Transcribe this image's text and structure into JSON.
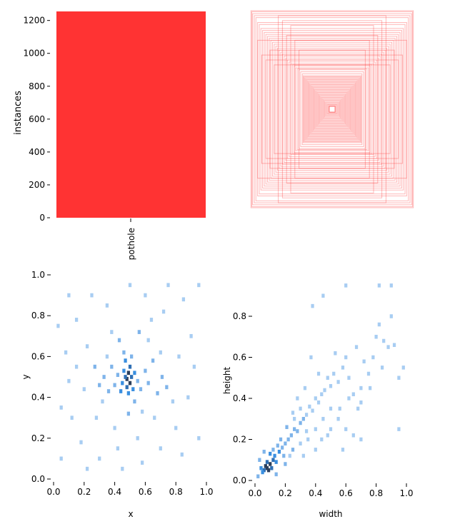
{
  "chart_data": [
    {
      "panel": "top-left",
      "type": "bar",
      "categories": [
        "pothole"
      ],
      "values": [
        1255
      ],
      "xlabel": "",
      "ylabel": "instances",
      "ylim": [
        0,
        1255
      ],
      "yticks": [
        0,
        200,
        400,
        600,
        800,
        1000,
        1200
      ],
      "bar_color": "#ff3333",
      "grid": false
    },
    {
      "panel": "top-right",
      "type": "bounding-box-overlay",
      "description_visible": false,
      "box_color": "#ff3333",
      "box_sizes": [
        [
          0.98,
          1.0
        ],
        [
          0.97,
          0.99
        ],
        [
          0.96,
          0.97
        ],
        [
          0.94,
          0.95
        ],
        [
          0.92,
          0.93
        ],
        [
          0.9,
          0.88
        ],
        [
          0.88,
          0.86
        ],
        [
          0.86,
          0.82
        ],
        [
          0.84,
          0.8
        ],
        [
          0.82,
          0.78
        ],
        [
          0.8,
          0.76
        ],
        [
          0.78,
          0.74
        ],
        [
          0.76,
          0.72
        ],
        [
          0.74,
          0.7
        ],
        [
          0.72,
          0.68
        ],
        [
          0.7,
          0.66
        ],
        [
          0.68,
          0.64
        ],
        [
          0.66,
          0.62
        ],
        [
          0.64,
          0.6
        ],
        [
          0.62,
          0.58
        ],
        [
          0.6,
          0.56
        ],
        [
          0.58,
          0.54
        ],
        [
          0.56,
          0.52
        ],
        [
          0.54,
          0.5
        ],
        [
          0.52,
          0.48
        ],
        [
          0.5,
          0.46
        ],
        [
          0.48,
          0.45
        ],
        [
          0.46,
          0.44
        ],
        [
          0.44,
          0.42
        ],
        [
          0.42,
          0.41
        ],
        [
          0.4,
          0.4
        ],
        [
          0.38,
          0.38
        ],
        [
          0.36,
          0.36
        ],
        [
          0.35,
          0.34
        ],
        [
          0.34,
          0.33
        ],
        [
          0.33,
          0.32
        ],
        [
          0.32,
          0.31
        ],
        [
          0.31,
          0.3
        ],
        [
          0.3,
          0.29
        ],
        [
          0.29,
          0.28
        ],
        [
          0.28,
          0.27
        ],
        [
          0.27,
          0.26
        ],
        [
          0.26,
          0.25
        ],
        [
          0.25,
          0.24
        ],
        [
          0.24,
          0.23
        ],
        [
          0.23,
          0.22
        ],
        [
          0.22,
          0.21
        ],
        [
          0.21,
          0.2
        ],
        [
          0.2,
          0.19
        ],
        [
          0.19,
          0.18
        ],
        [
          0.18,
          0.17
        ],
        [
          0.17,
          0.16
        ],
        [
          0.16,
          0.15
        ],
        [
          0.15,
          0.14
        ],
        [
          0.14,
          0.13
        ],
        [
          0.13,
          0.12
        ],
        [
          0.12,
          0.11
        ],
        [
          0.11,
          0.1
        ],
        [
          0.1,
          0.09
        ],
        [
          0.09,
          0.08
        ],
        [
          0.08,
          0.07
        ],
        [
          0.07,
          0.06
        ],
        [
          0.06,
          0.05
        ],
        [
          0.05,
          0.045
        ],
        [
          0.04,
          0.035
        ],
        [
          0.03,
          0.03
        ],
        [
          0.02,
          0.02
        ],
        [
          0.6,
          0.9
        ],
        [
          0.5,
          0.85
        ],
        [
          0.75,
          0.6
        ],
        [
          0.85,
          0.55
        ],
        [
          0.65,
          0.95
        ],
        [
          0.45,
          0.7
        ],
        [
          0.7,
          0.45
        ],
        [
          0.9,
          0.7
        ],
        [
          0.55,
          0.75
        ],
        [
          0.8,
          0.5
        ],
        [
          0.4,
          0.6
        ]
      ]
    },
    {
      "panel": "bottom-left",
      "type": "heatmap",
      "xlabel": "x",
      "ylabel": "y",
      "xlim": [
        0,
        1
      ],
      "ylim": [
        0,
        1
      ],
      "xticks": [
        "0.0",
        "0.2",
        "0.4",
        "0.6",
        "0.8",
        "1.0"
      ],
      "yticks": [
        "0.0",
        "0.2",
        "0.4",
        "0.6",
        "0.8",
        "1.0"
      ],
      "color_light": "#a8cdf2",
      "color_mid": "#3a8fe0",
      "color_dark": "#2b3f5c",
      "center": [
        0.49,
        0.49
      ],
      "cells": [
        [
          0.48,
          0.49,
          5
        ],
        [
          0.5,
          0.47,
          5
        ],
        [
          0.49,
          0.52,
          5
        ],
        [
          0.47,
          0.5,
          4
        ],
        [
          0.51,
          0.5,
          4
        ],
        [
          0.48,
          0.45,
          4
        ],
        [
          0.5,
          0.55,
          4
        ],
        [
          0.46,
          0.53,
          3
        ],
        [
          0.52,
          0.44,
          3
        ],
        [
          0.45,
          0.47,
          3
        ],
        [
          0.53,
          0.52,
          3
        ],
        [
          0.49,
          0.42,
          3
        ],
        [
          0.47,
          0.58,
          3
        ],
        [
          0.44,
          0.43,
          3
        ],
        [
          0.55,
          0.48,
          2
        ],
        [
          0.42,
          0.51,
          2
        ],
        [
          0.51,
          0.6,
          2
        ],
        [
          0.4,
          0.46,
          2
        ],
        [
          0.57,
          0.44,
          2
        ],
        [
          0.46,
          0.62,
          2
        ],
        [
          0.6,
          0.53,
          2
        ],
        [
          0.38,
          0.55,
          2
        ],
        [
          0.62,
          0.47,
          2
        ],
        [
          0.36,
          0.43,
          2
        ],
        [
          0.65,
          0.58,
          2
        ],
        [
          0.53,
          0.38,
          2
        ],
        [
          0.33,
          0.5,
          2
        ],
        [
          0.68,
          0.42,
          2
        ],
        [
          0.43,
          0.68,
          2
        ],
        [
          0.71,
          0.5,
          2
        ],
        [
          0.3,
          0.46,
          2
        ],
        [
          0.49,
          0.32,
          2
        ],
        [
          0.56,
          0.72,
          2
        ],
        [
          0.27,
          0.55,
          2
        ],
        [
          0.74,
          0.45,
          2
        ],
        [
          0.2,
          0.44,
          1
        ],
        [
          0.12,
          0.3,
          1
        ],
        [
          0.08,
          0.62,
          1
        ],
        [
          0.15,
          0.78,
          1
        ],
        [
          0.25,
          0.9,
          1
        ],
        [
          0.35,
          0.85,
          1
        ],
        [
          0.6,
          0.9,
          1
        ],
        [
          0.72,
          0.82,
          1
        ],
        [
          0.85,
          0.88,
          1
        ],
        [
          0.9,
          0.7,
          1
        ],
        [
          0.82,
          0.6,
          1
        ],
        [
          0.88,
          0.4,
          1
        ],
        [
          0.8,
          0.25,
          1
        ],
        [
          0.7,
          0.15,
          1
        ],
        [
          0.58,
          0.08,
          1
        ],
        [
          0.45,
          0.05,
          1
        ],
        [
          0.3,
          0.1,
          1
        ],
        [
          0.18,
          0.18,
          1
        ],
        [
          0.05,
          0.35,
          1
        ],
        [
          0.1,
          0.48,
          1
        ],
        [
          0.22,
          0.65,
          1
        ],
        [
          0.38,
          0.72,
          1
        ],
        [
          0.62,
          0.68,
          1
        ],
        [
          0.78,
          0.38,
          1
        ],
        [
          0.66,
          0.3,
          1
        ],
        [
          0.4,
          0.25,
          1
        ],
        [
          0.28,
          0.3,
          1
        ],
        [
          0.15,
          0.55,
          1
        ],
        [
          0.92,
          0.55,
          1
        ],
        [
          0.95,
          0.2,
          1
        ],
        [
          0.05,
          0.1,
          1
        ],
        [
          0.1,
          0.9,
          1
        ],
        [
          0.5,
          0.95,
          1
        ],
        [
          0.75,
          0.95,
          1
        ],
        [
          0.95,
          0.95,
          1
        ],
        [
          0.03,
          0.75,
          1
        ],
        [
          0.35,
          0.6,
          1
        ],
        [
          0.64,
          0.78,
          1
        ],
        [
          0.84,
          0.12,
          1
        ],
        [
          0.22,
          0.05,
          1
        ],
        [
          0.55,
          0.2,
          1
        ],
        [
          0.42,
          0.15,
          1
        ],
        [
          0.7,
          0.62,
          1
        ],
        [
          0.32,
          0.38,
          1
        ],
        [
          0.58,
          0.33,
          1
        ]
      ]
    },
    {
      "panel": "bottom-right",
      "type": "heatmap",
      "xlabel": "width",
      "ylabel": "height",
      "xlim": [
        0,
        1
      ],
      "ylim": [
        0,
        0.96
      ],
      "xticks": [
        "0.0",
        "0.2",
        "0.4",
        "0.6",
        "0.8",
        "1.0"
      ],
      "yticks": [
        "0.0",
        "0.2",
        "0.4",
        "0.6",
        "0.8"
      ],
      "color_light": "#a8cdf2",
      "color_mid": "#3a8fe0",
      "color_dark": "#2b3f5c",
      "cells": [
        [
          0.08,
          0.06,
          5
        ],
        [
          0.09,
          0.05,
          5
        ],
        [
          0.07,
          0.07,
          5
        ],
        [
          0.1,
          0.08,
          5
        ],
        [
          0.06,
          0.05,
          4
        ],
        [
          0.11,
          0.06,
          4
        ],
        [
          0.08,
          0.09,
          4
        ],
        [
          0.12,
          0.1,
          4
        ],
        [
          0.05,
          0.04,
          3
        ],
        [
          0.13,
          0.12,
          3
        ],
        [
          0.14,
          0.09,
          3
        ],
        [
          0.1,
          0.13,
          3
        ],
        [
          0.16,
          0.14,
          3
        ],
        [
          0.04,
          0.06,
          3
        ],
        [
          0.18,
          0.16,
          2
        ],
        [
          0.2,
          0.18,
          2
        ],
        [
          0.15,
          0.17,
          2
        ],
        [
          0.22,
          0.2,
          2
        ],
        [
          0.24,
          0.22,
          2
        ],
        [
          0.19,
          0.12,
          2
        ],
        [
          0.26,
          0.25,
          2
        ],
        [
          0.28,
          0.24,
          2
        ],
        [
          0.17,
          0.2,
          2
        ],
        [
          0.3,
          0.28,
          2
        ],
        [
          0.21,
          0.26,
          2
        ],
        [
          0.32,
          0.3,
          2
        ],
        [
          0.25,
          0.15,
          2
        ],
        [
          0.12,
          0.15,
          2
        ],
        [
          0.34,
          0.32,
          1
        ],
        [
          0.36,
          0.36,
          1
        ],
        [
          0.38,
          0.34,
          1
        ],
        [
          0.4,
          0.4,
          1
        ],
        [
          0.42,
          0.38,
          1
        ],
        [
          0.44,
          0.42,
          1
        ],
        [
          0.46,
          0.44,
          1
        ],
        [
          0.48,
          0.5,
          1
        ],
        [
          0.5,
          0.46,
          1
        ],
        [
          0.52,
          0.52,
          1
        ],
        [
          0.55,
          0.48,
          1
        ],
        [
          0.58,
          0.55,
          1
        ],
        [
          0.6,
          0.6,
          1
        ],
        [
          0.62,
          0.5,
          1
        ],
        [
          0.65,
          0.42,
          1
        ],
        [
          0.68,
          0.35,
          1
        ],
        [
          0.7,
          0.45,
          1
        ],
        [
          0.72,
          0.58,
          1
        ],
        [
          0.75,
          0.52,
          1
        ],
        [
          0.78,
          0.6,
          1
        ],
        [
          0.8,
          0.7,
          1
        ],
        [
          0.82,
          0.76,
          1
        ],
        [
          0.85,
          0.68,
          1
        ],
        [
          0.88,
          0.65,
          1
        ],
        [
          0.9,
          0.8,
          1
        ],
        [
          0.92,
          0.66,
          1
        ],
        [
          0.95,
          0.5,
          1
        ],
        [
          0.98,
          0.55,
          1
        ],
        [
          0.5,
          0.35,
          1
        ],
        [
          0.45,
          0.3,
          1
        ],
        [
          0.4,
          0.25,
          1
        ],
        [
          0.35,
          0.2,
          1
        ],
        [
          0.55,
          0.3,
          1
        ],
        [
          0.6,
          0.25,
          1
        ],
        [
          0.65,
          0.22,
          1
        ],
        [
          0.3,
          0.35,
          1
        ],
        [
          0.25,
          0.33,
          1
        ],
        [
          0.28,
          0.4,
          1
        ],
        [
          0.33,
          0.45,
          1
        ],
        [
          0.38,
          0.85,
          1
        ],
        [
          0.45,
          0.9,
          1
        ],
        [
          0.6,
          0.95,
          1
        ],
        [
          0.82,
          0.95,
          1
        ],
        [
          0.9,
          0.95,
          1
        ],
        [
          0.95,
          0.25,
          1
        ],
        [
          0.7,
          0.2,
          1
        ],
        [
          0.58,
          0.15,
          1
        ],
        [
          0.48,
          0.22,
          1
        ],
        [
          0.42,
          0.52,
          1
        ],
        [
          0.37,
          0.6,
          1
        ],
        [
          0.53,
          0.62,
          1
        ],
        [
          0.67,
          0.65,
          1
        ],
        [
          0.02,
          0.02,
          2
        ],
        [
          0.03,
          0.1,
          2
        ],
        [
          0.14,
          0.03,
          2
        ],
        [
          0.2,
          0.08,
          2
        ],
        [
          0.06,
          0.14,
          2
        ],
        [
          0.23,
          0.12,
          1
        ],
        [
          0.3,
          0.18,
          1
        ],
        [
          0.34,
          0.24,
          1
        ],
        [
          0.26,
          0.3,
          1
        ],
        [
          0.32,
          0.12,
          1
        ],
        [
          0.4,
          0.15,
          1
        ],
        [
          0.44,
          0.2,
          1
        ],
        [
          0.5,
          0.25,
          1
        ],
        [
          0.56,
          0.35,
          1
        ],
        [
          0.62,
          0.4,
          1
        ],
        [
          0.7,
          0.38,
          1
        ],
        [
          0.76,
          0.45,
          1
        ],
        [
          0.84,
          0.55,
          1
        ]
      ]
    }
  ]
}
